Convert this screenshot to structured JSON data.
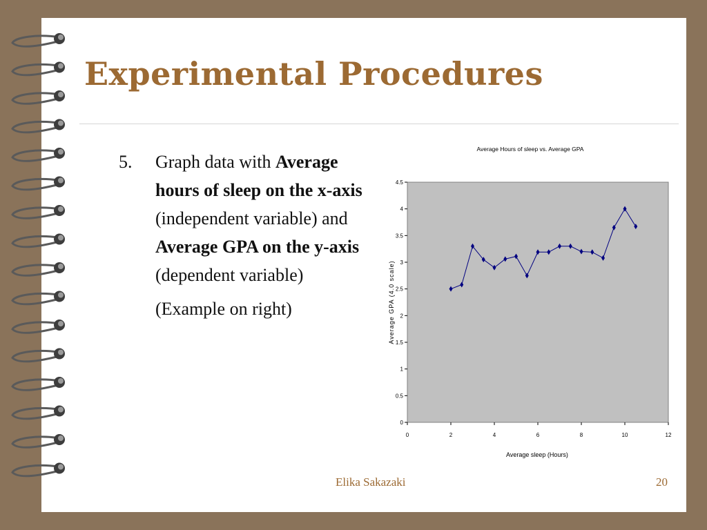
{
  "slide": {
    "title": "Experimental Procedures",
    "step_number": "5.",
    "body_parts": [
      {
        "text": "Graph data with ",
        "bold": false
      },
      {
        "text": "Average hours of sleep on the x-axis",
        "bold": true
      },
      {
        "text": " (independent variable) and ",
        "bold": false
      },
      {
        "text": "Average GPA on the y-axis",
        "bold": true
      },
      {
        "text": " (dependent variable)",
        "bold": false
      }
    ],
    "example_note": "(Example on right)",
    "footer_author": "Elika Sakazaki",
    "page_number": "20"
  },
  "colors": {
    "title": "#9c6a33",
    "background_frame": "#8a735a",
    "plot_area": "#c0c0c0",
    "series": "#000080"
  },
  "chart_data": {
    "type": "line",
    "title": "Average Hours of sleep vs. Average GPA",
    "xlabel": "Average sleep (Hours)",
    "ylabel": "Average GPA (4.0 scale)",
    "xlim": [
      0,
      12
    ],
    "ylim": [
      0,
      4.5
    ],
    "xticks": [
      "0",
      "2",
      "4",
      "6",
      "8",
      "10",
      "12"
    ],
    "yticks": [
      "0",
      "0.5",
      "1",
      "1.5",
      "2",
      "2.5",
      "3",
      "3.5",
      "4",
      "4.5"
    ],
    "grid": false,
    "series": [
      {
        "x": [
          2,
          2.5,
          3,
          3.5,
          4,
          4.5,
          5,
          5.5,
          6,
          6.5,
          7,
          7.5,
          8,
          8.5,
          9,
          9.5,
          10,
          10.5
        ],
        "y": [
          2.5,
          2.58,
          3.3,
          3.05,
          2.9,
          3.06,
          3.11,
          2.75,
          3.19,
          3.19,
          3.3,
          3.3,
          3.2,
          3.19,
          3.08,
          3.65,
          4.0,
          3.67
        ]
      }
    ]
  }
}
